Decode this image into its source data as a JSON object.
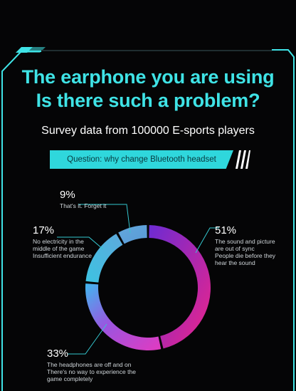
{
  "title_line1": "The earphone you are using",
  "title_line2": "Is there such a problem?",
  "subtitle": "Survey data from 100000 E-sports players",
  "question": "Question: why change Bluetooth headset frequently?",
  "colors": {
    "accent": "#3fe3e6",
    "background": "#050506"
  },
  "chart_data": {
    "type": "pie",
    "variant": "donut",
    "slices": [
      {
        "value": 51,
        "label": "51%",
        "desc": [
          "The sound and picture",
          "are out of sync",
          "People die before they",
          "hear the sound"
        ],
        "colors": [
          "#7a2bd6",
          "#e8258d"
        ]
      },
      {
        "value": 33,
        "label": "33%",
        "desc": [
          "The headphones are off and on",
          "There's no way to experience the",
          "game completely"
        ],
        "colors": [
          "#d43acf",
          "#4aa7ef"
        ]
      },
      {
        "value": 17,
        "label": "17%",
        "desc": [
          "No electricity in the",
          "middle of the game",
          "Insufficient endurance"
        ],
        "colors": [
          "#3ebfe0",
          "#58a9dc"
        ]
      },
      {
        "value": 9,
        "label": "9%",
        "desc": [
          "That's it. Forget it"
        ],
        "colors": [
          "#5fa6db",
          "#5fa6db"
        ]
      }
    ]
  }
}
